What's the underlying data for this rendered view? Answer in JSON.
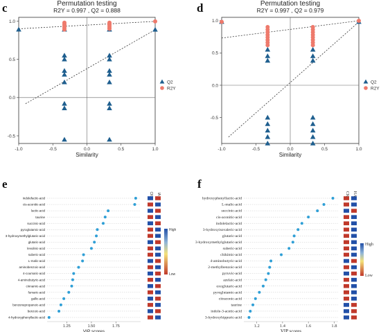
{
  "colors": {
    "q2": "#1f5f8f",
    "r2y": "#ee7a6c",
    "vip": "#2f9fd6",
    "high": "#c0392b",
    "low": "#2250a8"
  },
  "chart_data": [
    {
      "panel": "c",
      "type": "scatter",
      "title": "Permutation testing",
      "subtitle": "R2Y = 0.997 ,  Q2 = 0.888",
      "xlabel": "Similarity",
      "ylabel": "",
      "xlim": [
        -1.0,
        1.0
      ],
      "ylim": [
        -0.6,
        1.05
      ],
      "xticks": [
        "-1.0",
        "-0.5",
        "0.0",
        "0.5",
        "1.0"
      ],
      "yticks": [
        "-0.5",
        "0.0",
        "0.5",
        "1.0"
      ],
      "legend": [
        {
          "name": "Q2",
          "marker": "triangle"
        },
        {
          "name": "R2Y",
          "marker": "circle"
        }
      ],
      "q2": {
        "x": [
          -1.0,
          -0.33,
          -0.33,
          -0.33,
          -0.33,
          -0.33,
          -0.33,
          -0.33,
          -0.33,
          -0.33,
          0.33,
          0.33,
          0.33,
          0.33,
          0.33,
          0.33,
          0.33,
          0.33,
          0.33,
          1.0
        ],
        "y": [
          0.89,
          0.89,
          0.55,
          0.5,
          0.35,
          0.3,
          0.2,
          -0.08,
          -0.14,
          -0.55,
          0.89,
          0.55,
          0.5,
          0.35,
          0.3,
          0.2,
          -0.08,
          -0.14,
          -0.55,
          0.888
        ]
      },
      "r2y": {
        "x": [
          -0.33,
          -0.33,
          -0.33,
          -0.33,
          -0.33,
          -0.33,
          0.33,
          0.33,
          0.33,
          0.33,
          0.33,
          0.33,
          1.0
        ],
        "y": [
          0.98,
          0.96,
          0.95,
          0.93,
          0.91,
          0.89,
          0.98,
          0.96,
          0.95,
          0.93,
          0.91,
          0.9,
          0.997
        ]
      },
      "r2y_line": [
        [
          -1.0,
          0.9
        ],
        [
          1.0,
          0.997
        ]
      ],
      "q2_line": [
        [
          -0.9,
          -0.08
        ],
        [
          1.0,
          0.888
        ]
      ]
    },
    {
      "panel": "d",
      "type": "scatter",
      "title": "Permutation testing",
      "subtitle": "R2Y = 0.997 ,  Q2 = 0.979",
      "xlabel": "Similarity",
      "ylabel": "",
      "xlim": [
        -1.0,
        1.0
      ],
      "ylim": [
        -0.9,
        1.05
      ],
      "xticks": [
        "-1.0",
        "-0.5",
        "0.0",
        "0.5",
        "1.0"
      ],
      "yticks": [
        "-0.5",
        "0.0",
        "0.5",
        "1.0"
      ],
      "legend": [
        {
          "name": "Q2",
          "marker": "triangle"
        },
        {
          "name": "R2Y",
          "marker": "circle"
        }
      ],
      "q2": {
        "x": [
          -1.0,
          -0.33,
          -0.33,
          -0.33,
          -0.33,
          -0.33,
          -0.33,
          -0.33,
          -0.33,
          0.33,
          0.33,
          0.33,
          0.33,
          0.33,
          0.33,
          0.33,
          0.33,
          1.0
        ],
        "y": [
          0.98,
          0.55,
          0.45,
          0.38,
          -0.5,
          -0.6,
          -0.7,
          -0.8,
          -0.9,
          0.55,
          0.45,
          0.38,
          -0.5,
          -0.6,
          -0.7,
          -0.8,
          -0.9,
          0.979
        ]
      },
      "r2y": {
        "x": [
          -1.0,
          -0.33,
          -0.33,
          -0.33,
          -0.33,
          -0.33,
          -0.33,
          -0.33,
          -0.33,
          0.33,
          0.33,
          0.33,
          0.33,
          0.33,
          0.33,
          0.33,
          0.33,
          1.0
        ],
        "y": [
          0.98,
          0.9,
          0.86,
          0.82,
          0.78,
          0.74,
          0.7,
          0.66,
          0.62,
          0.9,
          0.86,
          0.82,
          0.78,
          0.74,
          0.7,
          0.66,
          0.62,
          0.997
        ]
      },
      "r2y_line": [
        [
          -1.0,
          0.73
        ],
        [
          1.0,
          0.997
        ]
      ],
      "q2_line": [
        [
          -0.9,
          -0.8
        ],
        [
          1.0,
          0.979
        ]
      ]
    },
    {
      "panel": "e",
      "type": "scatter",
      "xlabel": "VIP scores",
      "xlim": [
        1.05,
        2.0
      ],
      "xticks": [
        1.25,
        1.5,
        1.75
      ],
      "xtick_labels": [
        "1.25",
        "1.50",
        "1.75"
      ],
      "categories": [
        "indolefactic-acid",
        "cis-aconitic-acid",
        "lactic-acid",
        "taurine",
        "succinic-acid",
        "pyroglutamic-acid",
        "3-hydroxymethylglutaric-acid",
        "glutaric-acid",
        "levulinic-acid",
        "suberic-acid",
        "L-malic-acid",
        "aminobenzoic-acid",
        "4-coumaric-acid",
        "4-aminobutyric-acid",
        "cinnamic-acid",
        "fumaric-acid",
        "gallic-acid",
        "benzenepropanoic-acid",
        "benzoic-acid",
        "4-hydroxyphenyllactic-acid"
      ],
      "values": [
        1.95,
        1.94,
        1.67,
        1.64,
        1.62,
        1.56,
        1.55,
        1.53,
        1.5,
        1.42,
        1.41,
        1.37,
        1.32,
        1.31,
        1.3,
        1.27,
        1.22,
        1.19,
        1.17,
        1.07
      ],
      "group_headers": [
        "CK",
        "IA"
      ],
      "heat_matrix": [
        [
          "low",
          "high"
        ],
        [
          "high",
          "low"
        ],
        [
          "low",
          "high"
        ],
        [
          "high",
          "low"
        ],
        [
          "low",
          "high"
        ],
        [
          "high",
          "low"
        ],
        [
          "high",
          "low"
        ],
        [
          "low",
          "high"
        ],
        [
          "high",
          "low"
        ],
        [
          "high",
          "low"
        ],
        [
          "low",
          "high"
        ],
        [
          "high",
          "low"
        ],
        [
          "low",
          "high"
        ],
        [
          "high",
          "low"
        ],
        [
          "low",
          "high"
        ],
        [
          "high",
          "low"
        ],
        [
          "low",
          "high"
        ],
        [
          "high",
          "low"
        ],
        [
          "low",
          "high"
        ],
        [
          "high",
          "low"
        ]
      ],
      "scale_labels": [
        "High",
        "Low"
      ]
    },
    {
      "panel": "f",
      "type": "scatter",
      "xlabel": "VIP scores",
      "xlim": [
        1.1,
        1.83
      ],
      "xticks": [
        1.2,
        1.4,
        1.6,
        1.8
      ],
      "xtick_labels": [
        "1.2",
        "1.4",
        "1.6",
        "1.8"
      ],
      "categories": [
        "hydroxyphenyllactic-acid",
        "L-malic-acid",
        "succinic-acid",
        "cis-aconitic-acid",
        "indolelactic-acid",
        "3-hydroxyisovaleric-acid",
        "glutaric-acid",
        "3-hydroxymethylglutaric-acid",
        "suberic-acid",
        "chikimic-acid",
        "4-aminobutyric-acid",
        "2-methylbenzoic-acid",
        "pyruvic-acid",
        "azelaic-acid",
        "oxoglutaric-acid",
        "pyroglutamic-acid",
        "citraconic-acid",
        "taurine",
        "indole-3-acetic-acid",
        "3-hydroxyhippuric-acid"
      ],
      "values": [
        1.79,
        1.72,
        1.67,
        1.6,
        1.55,
        1.52,
        1.49,
        1.48,
        1.45,
        1.39,
        1.31,
        1.3,
        1.29,
        1.27,
        1.25,
        1.22,
        1.19,
        1.17,
        1.15,
        1.14
      ],
      "group_headers": [
        "CK",
        "HA"
      ],
      "heat_matrix": [
        [
          "high",
          "low"
        ],
        [
          "high",
          "low"
        ],
        [
          "low",
          "high"
        ],
        [
          "high",
          "low"
        ],
        [
          "high",
          "low"
        ],
        [
          "high",
          "low"
        ],
        [
          "high",
          "low"
        ],
        [
          "high",
          "low"
        ],
        [
          "high",
          "low"
        ],
        [
          "high",
          "low"
        ],
        [
          "low",
          "high"
        ],
        [
          "high",
          "low"
        ],
        [
          "low",
          "high"
        ],
        [
          "high",
          "low"
        ],
        [
          "high",
          "low"
        ],
        [
          "high",
          "low"
        ],
        [
          "high",
          "low"
        ],
        [
          "low",
          "high"
        ],
        [
          "low",
          "high"
        ],
        [
          "low",
          "high"
        ]
      ],
      "scale_labels": [
        "High",
        "Low"
      ]
    }
  ]
}
